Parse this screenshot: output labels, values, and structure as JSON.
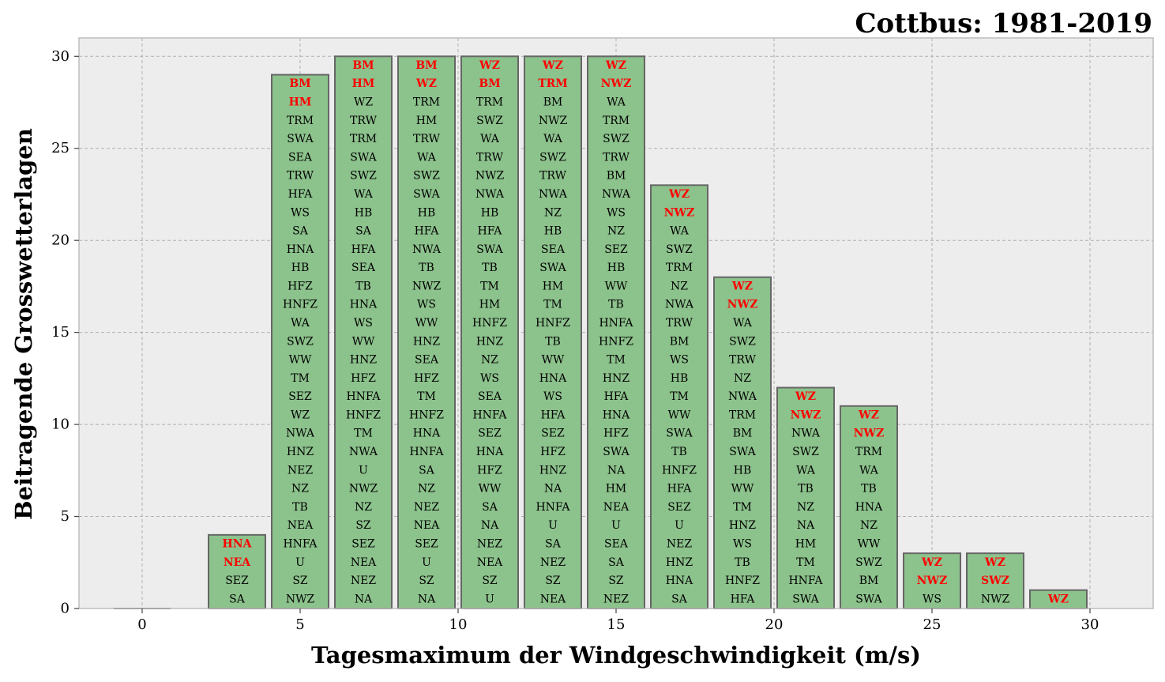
{
  "chart_data": {
    "type": "bar",
    "title": "Cottbus: 1981-2019",
    "xlabel": "Tagesmaximum der Windgeschwindigkeit (m/s)",
    "ylabel": "Beitragende Grosswetterlagen",
    "xlim": [
      -2,
      32
    ],
    "ylim": [
      0,
      31
    ],
    "xticks": [
      0,
      5,
      10,
      15,
      20,
      25,
      30
    ],
    "yticks": [
      0,
      5,
      10,
      15,
      20,
      25,
      30
    ],
    "grid": true,
    "colors": {
      "background": "#ededed",
      "bar_fill": "#8cc28c",
      "bar_edge": "#666666",
      "highlight_text": "#ff0000",
      "normal_text": "#000000",
      "grid": "#b0b0b0"
    },
    "bars": [
      {
        "x": 0,
        "value": 0,
        "labels": []
      },
      {
        "x": 3,
        "value": 4,
        "labels": [
          "SA",
          "SEZ",
          "NEA",
          "HNA"
        ],
        "highlight_count": 2
      },
      {
        "x": 5,
        "value": 29,
        "labels": [
          "NWZ",
          "SZ",
          "U",
          "HNFA",
          "NEA",
          "TB",
          "NZ",
          "NEZ",
          "HNZ",
          "NWA",
          "WZ",
          "SEZ",
          "TM",
          "WW",
          "SWZ",
          "WA",
          "HNFZ",
          "HFZ",
          "HB",
          "HNA",
          "SA",
          "WS",
          "HFA",
          "TRW",
          "SEA",
          "SWA",
          "TRM",
          "HM",
          "BM"
        ],
        "highlight_count": 2
      },
      {
        "x": 7,
        "value": 30,
        "labels": [
          "NA",
          "NEZ",
          "NEA",
          "SEZ",
          "SZ",
          "NZ",
          "NWZ",
          "U",
          "NWA",
          "TM",
          "HNFZ",
          "HNFA",
          "HFZ",
          "HNZ",
          "WW",
          "WS",
          "HNA",
          "TB",
          "SEA",
          "HFA",
          "SA",
          "HB",
          "WA",
          "SWZ",
          "SWA",
          "TRM",
          "TRW",
          "WZ",
          "HM",
          "BM"
        ],
        "highlight_count": 2
      },
      {
        "x": 9,
        "value": 30,
        "labels": [
          "NA",
          "SZ",
          "U",
          "SEZ",
          "NEA",
          "NEZ",
          "NZ",
          "SA",
          "HNFA",
          "HNA",
          "HNFZ",
          "TM",
          "HFZ",
          "SEA",
          "HNZ",
          "WW",
          "WS",
          "NWZ",
          "TB",
          "NWA",
          "HFA",
          "HB",
          "SWA",
          "SWZ",
          "WA",
          "TRW",
          "HM",
          "TRM",
          "WZ",
          "BM"
        ],
        "highlight_count": 2
      },
      {
        "x": 11,
        "value": 30,
        "labels": [
          "U",
          "SZ",
          "NEA",
          "NEZ",
          "NA",
          "SA",
          "WW",
          "HFZ",
          "HNA",
          "SEZ",
          "HNFA",
          "SEA",
          "WS",
          "NZ",
          "HNZ",
          "HNFZ",
          "HM",
          "TM",
          "TB",
          "SWA",
          "HFA",
          "HB",
          "NWA",
          "NWZ",
          "TRW",
          "WA",
          "SWZ",
          "TRM",
          "BM",
          "WZ"
        ],
        "highlight_count": 2
      },
      {
        "x": 13,
        "value": 30,
        "labels": [
          "NEA",
          "SZ",
          "NEZ",
          "SA",
          "U",
          "HNFA",
          "NA",
          "HNZ",
          "HFZ",
          "SEZ",
          "HFA",
          "WS",
          "HNA",
          "WW",
          "TB",
          "HNFZ",
          "TM",
          "HM",
          "SWA",
          "SEA",
          "HB",
          "NZ",
          "NWA",
          "TRW",
          "SWZ",
          "WA",
          "NWZ",
          "BM",
          "TRM",
          "WZ"
        ],
        "highlight_count": 2
      },
      {
        "x": 15,
        "value": 30,
        "labels": [
          "NEZ",
          "SZ",
          "SA",
          "SEA",
          "U",
          "NEA",
          "HM",
          "NA",
          "SWA",
          "HFZ",
          "HNA",
          "HFA",
          "HNZ",
          "TM",
          "HNFZ",
          "HNFA",
          "TB",
          "WW",
          "HB",
          "SEZ",
          "NZ",
          "WS",
          "NWA",
          "BM",
          "TRW",
          "SWZ",
          "TRM",
          "WA",
          "NWZ",
          "WZ"
        ],
        "highlight_count": 2
      },
      {
        "x": 17,
        "value": 23,
        "labels": [
          "SA",
          "HNA",
          "HNZ",
          "NEZ",
          "U",
          "SEZ",
          "HFA",
          "HNFZ",
          "TB",
          "SWA",
          "WW",
          "TM",
          "HB",
          "WS",
          "BM",
          "TRW",
          "NWA",
          "NZ",
          "TRM",
          "SWZ",
          "WA",
          "NWZ",
          "WZ"
        ],
        "highlight_count": 2
      },
      {
        "x": 19,
        "value": 18,
        "labels": [
          "HFA",
          "HNFZ",
          "TB",
          "WS",
          "HNZ",
          "TM",
          "WW",
          "HB",
          "SWA",
          "BM",
          "TRM",
          "NWA",
          "NZ",
          "TRW",
          "SWZ",
          "WA",
          "NWZ",
          "WZ"
        ],
        "highlight_count": 2
      },
      {
        "x": 21,
        "value": 12,
        "labels": [
          "SWA",
          "HNFA",
          "TM",
          "HM",
          "NA",
          "NZ",
          "TB",
          "WA",
          "SWZ",
          "NWA",
          "NWZ",
          "WZ"
        ],
        "highlight_count": 2
      },
      {
        "x": 23,
        "value": 11,
        "labels": [
          "SWA",
          "BM",
          "SWZ",
          "WW",
          "NZ",
          "HNA",
          "TB",
          "WA",
          "TRM",
          "NWZ",
          "WZ"
        ],
        "highlight_count": 2
      },
      {
        "x": 25,
        "value": 3,
        "labels": [
          "WS",
          "NWZ",
          "WZ"
        ],
        "highlight_count": 2
      },
      {
        "x": 27,
        "value": 3,
        "labels": [
          "NWZ",
          "SWZ",
          "WZ"
        ],
        "highlight_count": 2
      },
      {
        "x": 29,
        "value": 1,
        "labels": [
          "WZ"
        ],
        "highlight_count": 1
      }
    ]
  }
}
